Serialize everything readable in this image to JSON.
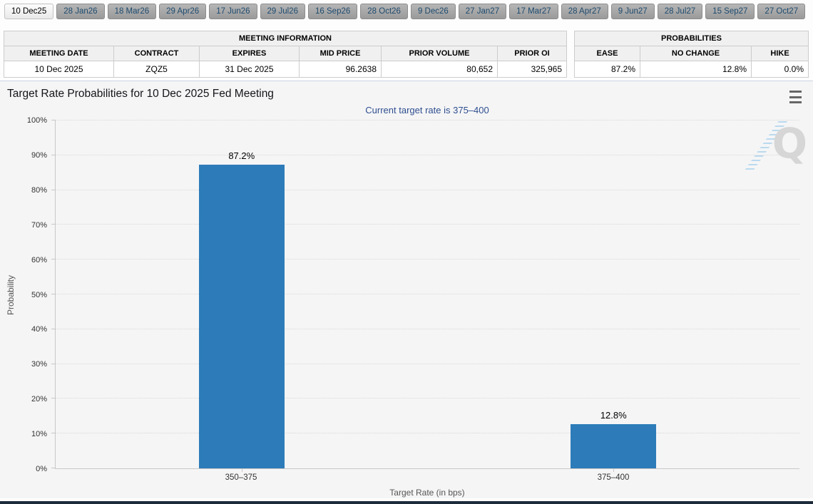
{
  "tabs": [
    {
      "label": "10 Dec25",
      "selected": true
    },
    {
      "label": "28 Jan26",
      "selected": false
    },
    {
      "label": "18 Mar26",
      "selected": false
    },
    {
      "label": "29 Apr26",
      "selected": false
    },
    {
      "label": "17 Jun26",
      "selected": false
    },
    {
      "label": "29 Jul26",
      "selected": false
    },
    {
      "label": "16 Sep26",
      "selected": false
    },
    {
      "label": "28 Oct26",
      "selected": false
    },
    {
      "label": "9 Dec26",
      "selected": false
    },
    {
      "label": "27 Jan27",
      "selected": false
    },
    {
      "label": "17 Mar27",
      "selected": false
    },
    {
      "label": "28 Apr27",
      "selected": false
    },
    {
      "label": "9 Jun27",
      "selected": false
    },
    {
      "label": "28 Jul27",
      "selected": false
    },
    {
      "label": "15 Sep27",
      "selected": false
    },
    {
      "label": "27 Oct27",
      "selected": false
    }
  ],
  "meeting_info": {
    "title": "MEETING INFORMATION",
    "columns": [
      "MEETING DATE",
      "CONTRACT",
      "EXPIRES",
      "MID PRICE",
      "PRIOR VOLUME",
      "PRIOR OI"
    ],
    "values": [
      "10 Dec 2025",
      "ZQZ5",
      "31 Dec 2025",
      "96.2638",
      "80,652",
      "325,965"
    ]
  },
  "probabilities": {
    "title": "PROBABILITIES",
    "columns": [
      "EASE",
      "NO CHANGE",
      "HIKE"
    ],
    "values": [
      "87.2%",
      "12.8%",
      "0.0%"
    ]
  },
  "chart_data": {
    "type": "bar",
    "title": "Target Rate Probabilities for 10 Dec 2025 Fed Meeting",
    "subtitle": "Current target rate is 375–400",
    "categories": [
      "350–375",
      "375–400"
    ],
    "values": [
      87.2,
      12.8
    ],
    "value_labels": [
      "87.2%",
      "12.8%"
    ],
    "xlabel": "Target Rate (in bps)",
    "ylabel": "Probability",
    "ylim": [
      0,
      100
    ],
    "ytick_step": 10,
    "ytick_suffix": "%",
    "grid": "dotted",
    "legend": "none",
    "bar_color": "#2d7cb9",
    "watermark_letter": "Q",
    "menu_icon": "hamburger-menu-icon"
  }
}
